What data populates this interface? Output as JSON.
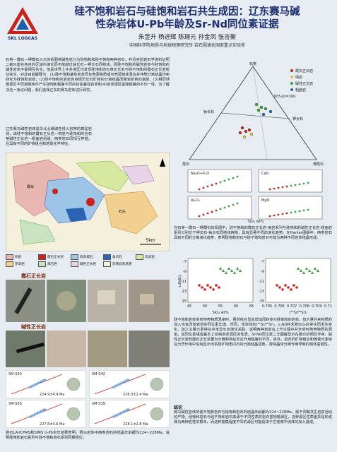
{
  "header": {
    "title_line1": "硅不饱和岩石与硅饱和岩石共生成因：辽东赛马碱",
    "title_line2": "性杂岩体U-Pb年龄及Sr-Nd同位素证据",
    "authors": "朱昱升  杨进辉  陈璟元  孙金凤  张吉衡",
    "affiliation": "中国科学院地质与地球物理研究所    岩石圈演化国家重点实验室",
    "logo_text": "SKL LGGCAS"
  },
  "intro": {
    "text": "石英—霞石—钾霞石三元体系图将碱性岩分为硅饱和和硅不饱和两种岩石，并且实验岩石学资料证明二者只能在各自的区域内演化而不能越过钠长石—钾长石同结线，即硅不饱和的碱性岩浆与硅饱和的碱性岩浆不能相互共生。但是世界上许多地区均发现硅饱和的石英正长岩与硅不饱和的霞石正长岩密切共生，对此目前解释为：(1)硅不饱和基性岩浆同化壳源物质或与壳源熔体混合并伴随分离结晶作用转化为硅饱和岩浆；(2)硅不饱和的岩浆自身经历长石矿物的分离结晶而使岩浆转向富硅；(3)相同地幔源区不同熔融条件产生硅饱和程度不同的初始基性岩浆和(4)岩浆源区富硅程度的不均一性。为了解决这一争议问题，我们选择辽东的赛马岩体进行研究。"
  },
  "geology": {
    "text": "辽东赛马碱性岩体是华北北缘碱性侵入岩带的典型岩体，由硅不饱和的霞石正长岩—响岩与硅饱和的含石英碱性正长岩—粗面岩组成，两类岩石同相互穿插，且具有不同的矿物组合和地球化学特征。",
    "map_scale": "5km",
    "map_place": "赛马",
    "map_place2": "石头",
    "legend": [
      "响岩",
      "霞石正长岩",
      "假白榴石",
      "角闪石",
      "玄武岩",
      "花岗岩",
      "辉石岩",
      "碱性正长岩",
      "前寒武系基底"
    ]
  },
  "photos": {
    "caption1": "霞石正长岩",
    "caption2": "碱性正长岩"
  },
  "ternary": {
    "apex_top": "石英",
    "left_bottom": "霞石",
    "right_bottom": "钾霞石",
    "mid_left": "钠长石",
    "mid_right": "钾长石",
    "pressure": "P(H₂O)=1Kb",
    "legend": [
      "霞石正长岩",
      "响岩",
      "碱性正长岩",
      "粗面岩"
    ]
  },
  "harker": {
    "panels": [
      "Na₂O+K₂O",
      "CaO",
      "Al₂O₃",
      "MgO"
    ],
    "xlabel": "SiO₂ wt%"
  },
  "result1": {
    "text": "在石英—霞石—钾霞石体系图中，硅不饱和的霞石正长岩-响岩系列与硅饱和的碱性正长岩-粗面岩系列分别位于钾长石-钠长石同结线两侧，具有显著不同的演化趋势。在Harker图解中，两类岩石具有不同的分离演化趋势，表明硅饱和岩石与硅不饱和岩石可能为两种不同岩浆结晶形成。"
  },
  "isotopes": {
    "left_ylabel": "εₙNd(t)",
    "left_xlabel": "SiO₂ wt%",
    "right_xlabel": "(⁸⁷Sr/⁸⁶Sr)ᵢ",
    "left_xticks": [
      "45",
      "50",
      "55",
      "60",
      "65"
    ],
    "right_xticks": [
      "0.705",
      "0.706",
      "0.707",
      "0.708",
      "0.709",
      "0.710"
    ],
    "yticks": [
      "-7",
      "-9",
      "-11",
      "-13",
      "-15"
    ]
  },
  "result2": {
    "text": "硅不饱和岩浆受到地壳物质混染时，虽然结合显会增加而转变为硅饱和的岩浆，但大量外来物质的加入也会改变岩浆的同位素比值。然而，该岩体的(⁸⁷Sr/⁸⁶Sr)ᵢ、εₙNd并未随SiO₂的变化而发生变化，加之主量元素特征中未显示出演化关联，说明两种岩浆在上升过程中并未受到地壳物质的混染。其同位素组成基本上反映岩浆源区的性质。Sr-Nd同位素二元图解显示在碳元的相互作用，碱性正长岩较霞石正长岩更为分散和特征反应作用程度的不同，另外，岩石的矿物组合和微量元素特征分异作用中没有显示出贫硅矿物角闪石的分离结晶迹象。排除晶体分离作用导致的熔体富硅性。"
  },
  "conclusion": {
    "heading": "结论",
    "text": "赛马碱性岩体的硅不饱和岩石与硅饱和岩石的结晶年龄都为224~228Ma，属于同期共生岩浆活动的产物。硅饱和岩石与硅不饱和岩石来源于不同性质的岩石圈地幔源区，这种源区性质差异是形成赛马两种岩性的根本。而这种富集程度不同的源区可能是由于古老俯冲流体的加入造成。"
  },
  "zircon": {
    "text": "锆石LA-ICPMS和SIMS U-Pb定年结果表明，赛马岩体中两类岩石的结晶年龄都为224~228Ma，说明硅饱和岩石系列与硅不饱和岩石系列同期侵位。",
    "plots": [
      {
        "sample": "SM-S50",
        "age": "224.9±4.4 Ma"
      },
      {
        "sample": "SM-S42",
        "age": "226.3±2.4 Ma"
      },
      {
        "sample": "SM-S58",
        "age": "227.6±3.6 Ma"
      },
      {
        "sample": "SM-S39",
        "age": "228.1±2.8 Ma"
      }
    ]
  },
  "colors": {
    "title": "#1d2f6f",
    "background": "#e7ecf2"
  }
}
